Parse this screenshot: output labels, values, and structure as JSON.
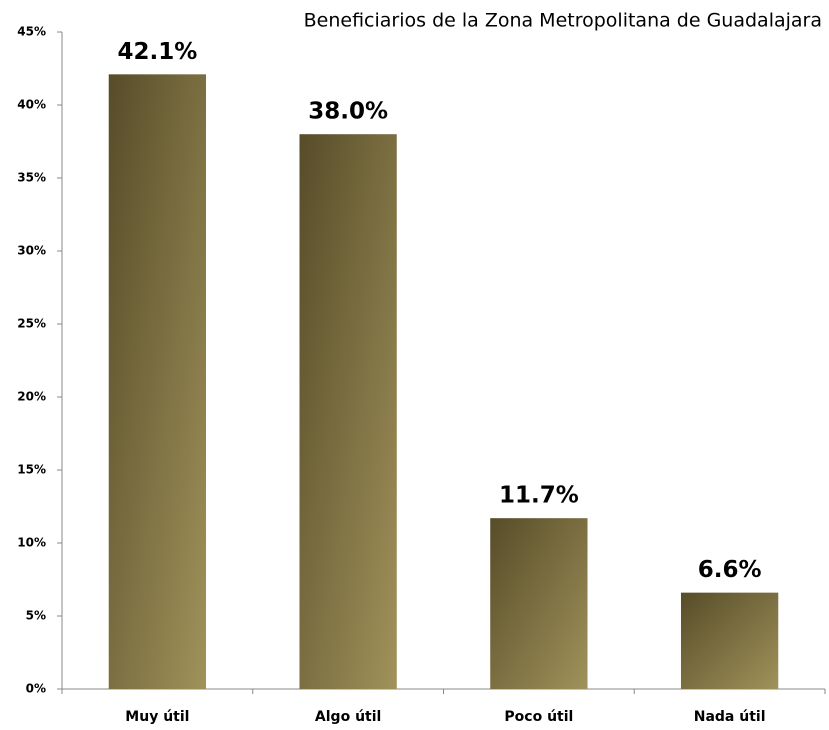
{
  "chart_data": {
    "type": "bar",
    "subtitle": "Beneficiarios de la Zona Metropolitana de Guadalajara",
    "categories": [
      "Muy útil",
      "Algo útil",
      "Poco útil",
      "Nada útil"
    ],
    "values": [
      42.1,
      38.0,
      11.7,
      6.6
    ],
    "value_labels": [
      "42.1%",
      "38.0%",
      "11.7%",
      "6.6%"
    ],
    "colors": [
      "#574c29",
      "#a0925a"
    ],
    "ylim": [
      0,
      45
    ],
    "yticks": [
      {
        "value": 0,
        "label": "0%"
      },
      {
        "value": 5,
        "label": "5%"
      },
      {
        "value": 10,
        "label": "10%"
      },
      {
        "value": 15,
        "label": "15%"
      },
      {
        "value": 20,
        "label": "20%"
      },
      {
        "value": 25,
        "label": "25%"
      },
      {
        "value": 30,
        "label": "30%"
      },
      {
        "value": 35,
        "label": "35%"
      },
      {
        "value": 40,
        "label": "40%"
      },
      {
        "value": 45,
        "label": "45%"
      }
    ],
    "grid": false
  }
}
